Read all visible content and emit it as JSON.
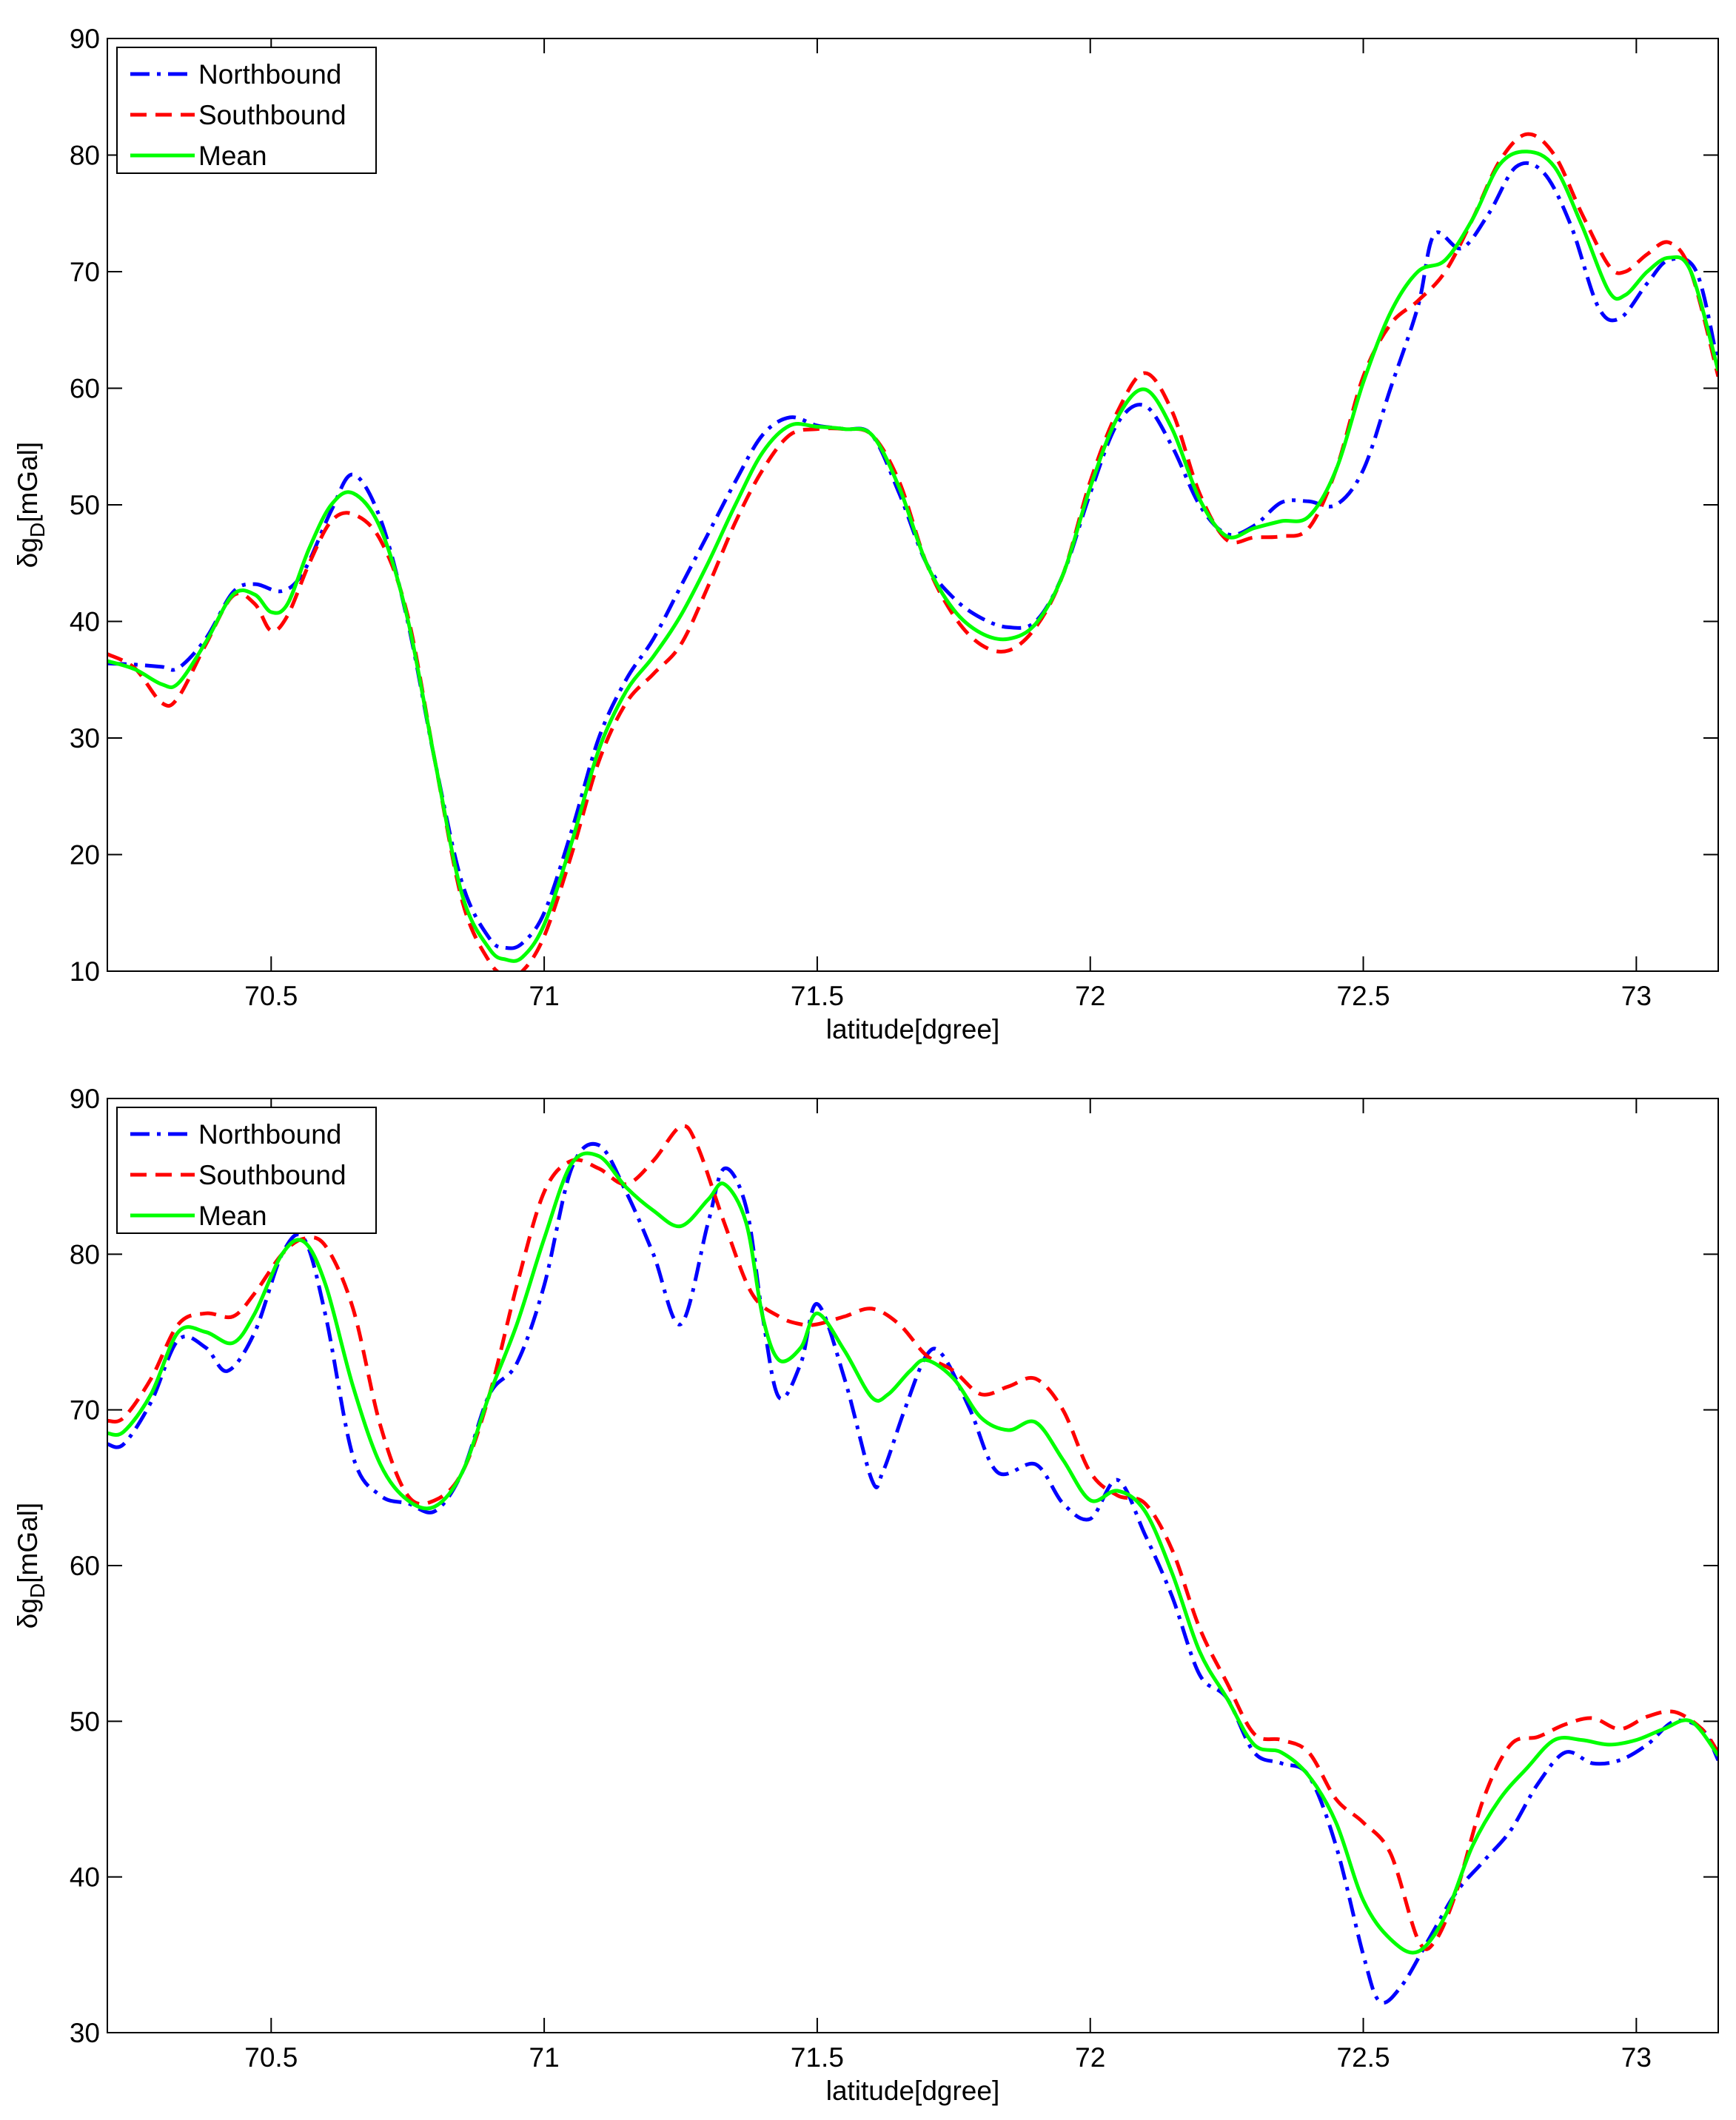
{
  "chart_data": [
    {
      "type": "line",
      "xlabel": "latitude[dgree]",
      "ylabel": "δg_D[mGal]",
      "ylabel_main": "δg",
      "ylabel_sub": "D",
      "ylabel_unit": "[mGal]",
      "xlim": [
        70.2,
        73.15
      ],
      "ylim": [
        10,
        90
      ],
      "xticks": [
        70.5,
        71,
        71.5,
        72,
        72.5,
        73
      ],
      "xtick_labels": [
        "70.5",
        "71",
        "71.5",
        "72",
        "72.5",
        "73"
      ],
      "yticks": [
        10,
        20,
        30,
        40,
        50,
        60,
        70,
        80,
        90
      ],
      "ytick_labels": [
        "10",
        "20",
        "30",
        "40",
        "50",
        "60",
        "70",
        "80",
        "90"
      ],
      "grid": false,
      "legend": "top-left",
      "series": [
        {
          "name": "Northbound",
          "color": "#0000ff",
          "style": "dashdot",
          "x": [
            70.2,
            70.25,
            70.3,
            70.33,
            70.38,
            70.43,
            70.47,
            70.52,
            70.56,
            70.61,
            70.65,
            70.7,
            70.75,
            70.8,
            70.85,
            70.9,
            70.93,
            70.96,
            71.0,
            71.05,
            71.1,
            71.15,
            71.2,
            71.25,
            71.3,
            71.35,
            71.4,
            71.45,
            71.5,
            71.55,
            71.6,
            71.65,
            71.7,
            71.75,
            71.8,
            71.85,
            71.9,
            71.95,
            72.0,
            72.05,
            72.1,
            72.15,
            72.2,
            72.25,
            72.3,
            72.35,
            72.4,
            72.45,
            72.5,
            72.55,
            72.6,
            72.63,
            72.68,
            72.73,
            72.78,
            72.83,
            72.88,
            72.93,
            72.97,
            73.02,
            73.06,
            73.11,
            73.15
          ],
          "values": [
            36.4,
            36.3,
            36.1,
            36.0,
            38.5,
            42.5,
            43.2,
            42.6,
            44.3,
            49.5,
            52.6,
            48.8,
            40.0,
            28.0,
            17.5,
            12.8,
            12.0,
            12.4,
            15.0,
            22.0,
            30.0,
            35.0,
            38.5,
            43.0,
            47.5,
            52.0,
            56.0,
            57.5,
            56.8,
            56.5,
            56.0,
            51.0,
            45.0,
            42.0,
            40.3,
            39.5,
            40.0,
            44.0,
            51.0,
            57.0,
            58.5,
            55.0,
            50.0,
            47.5,
            48.2,
            50.2,
            50.3,
            50.0,
            53.0,
            60.0,
            67.0,
            73.2,
            72.0,
            75.0,
            79.0,
            78.5,
            74.0,
            67.0,
            66.0,
            69.0,
            71.0,
            70.0,
            62.0
          ]
        },
        {
          "name": "Southbound",
          "color": "#ff0000",
          "style": "dashed",
          "x": [
            70.2,
            70.25,
            70.3,
            70.33,
            70.38,
            70.43,
            70.47,
            70.5,
            70.53,
            70.57,
            70.61,
            70.65,
            70.7,
            70.75,
            70.8,
            70.85,
            70.9,
            70.93,
            70.96,
            71.0,
            71.05,
            71.1,
            71.15,
            71.2,
            71.25,
            71.3,
            71.35,
            71.4,
            71.45,
            71.5,
            71.55,
            71.6,
            71.65,
            71.7,
            71.75,
            71.8,
            71.85,
            71.9,
            71.95,
            72.0,
            72.05,
            72.1,
            72.15,
            72.2,
            72.25,
            72.3,
            72.35,
            72.4,
            72.45,
            72.5,
            72.55,
            72.6,
            72.65,
            72.7,
            72.75,
            72.8,
            72.85,
            72.9,
            72.95,
            72.98,
            73.02,
            73.06,
            73.1,
            73.15
          ],
          "values": [
            37.2,
            36.0,
            33.0,
            33.5,
            38.0,
            42.2,
            41.5,
            39.2,
            40.5,
            45.0,
            48.6,
            49.2,
            47.0,
            40.5,
            28.0,
            16.0,
            10.8,
            9.7,
            10.0,
            13.0,
            20.0,
            28.0,
            33.0,
            35.5,
            38.0,
            43.0,
            48.5,
            53.0,
            56.0,
            56.5,
            56.5,
            56.0,
            52.0,
            45.0,
            40.5,
            38.0,
            37.5,
            39.5,
            44.0,
            52.0,
            58.0,
            61.3,
            58.0,
            51.0,
            47.0,
            47.2,
            47.3,
            48.0,
            53.0,
            61.0,
            65.5,
            67.5,
            70.0,
            74.5,
            79.5,
            81.8,
            80.0,
            75.0,
            70.5,
            70.0,
            71.5,
            72.5,
            70.0,
            61.0
          ]
        },
        {
          "name": "Mean",
          "color": "#00ff00",
          "style": "solid",
          "x": [
            70.2,
            70.25,
            70.3,
            70.33,
            70.38,
            70.43,
            70.47,
            70.5,
            70.53,
            70.57,
            70.61,
            70.65,
            70.7,
            70.75,
            70.8,
            70.85,
            70.9,
            70.93,
            70.96,
            71.0,
            71.05,
            71.1,
            71.15,
            71.2,
            71.25,
            71.3,
            71.35,
            71.4,
            71.45,
            71.5,
            71.55,
            71.6,
            71.65,
            71.7,
            71.75,
            71.8,
            71.85,
            71.9,
            71.95,
            72.0,
            72.05,
            72.1,
            72.15,
            72.2,
            72.25,
            72.3,
            72.35,
            72.4,
            72.45,
            72.5,
            72.55,
            72.6,
            72.65,
            72.7,
            72.75,
            72.8,
            72.85,
            72.9,
            72.95,
            72.98,
            73.02,
            73.06,
            73.1,
            73.15
          ],
          "values": [
            36.6,
            35.9,
            34.6,
            34.7,
            38.2,
            42.3,
            42.3,
            40.8,
            41.5,
            46.3,
            50.0,
            51.0,
            48.0,
            40.2,
            28.0,
            16.5,
            11.9,
            11.0,
            11.2,
            14.0,
            21.0,
            29.0,
            34.0,
            37.0,
            40.5,
            45.0,
            50.0,
            54.5,
            56.8,
            56.7,
            56.5,
            56.0,
            51.5,
            45.0,
            41.0,
            39.0,
            38.5,
            39.8,
            44.0,
            51.5,
            57.5,
            59.9,
            56.5,
            50.5,
            47.3,
            48.0,
            48.6,
            49.0,
            53.0,
            60.5,
            66.5,
            70.0,
            71.0,
            74.5,
            79.2,
            80.3,
            79.0,
            74.0,
            68.3,
            68.0,
            70.0,
            71.2,
            70.0,
            61.5
          ]
        }
      ]
    },
    {
      "type": "line",
      "xlabel": "latitude[dgree]",
      "ylabel": "δg_D[mGal]",
      "ylabel_main": "δg",
      "ylabel_sub": "D",
      "ylabel_unit": "[mGal]",
      "xlim": [
        70.2,
        73.15
      ],
      "ylim": [
        30,
        90
      ],
      "xticks": [
        70.5,
        71,
        71.5,
        72,
        72.5,
        73
      ],
      "xtick_labels": [
        "70.5",
        "71",
        "71.5",
        "72",
        "72.5",
        "73"
      ],
      "yticks": [
        30,
        40,
        50,
        60,
        70,
        80,
        90
      ],
      "ytick_labels": [
        "30",
        "40",
        "50",
        "60",
        "70",
        "80",
        "90"
      ],
      "grid": false,
      "legend": "top-left",
      "series": [
        {
          "name": "Northbound",
          "color": "#0000ff",
          "style": "dashdot",
          "x": [
            70.2,
            70.23,
            70.28,
            70.33,
            70.38,
            70.42,
            70.47,
            70.52,
            70.56,
            70.6,
            70.65,
            70.7,
            70.75,
            70.8,
            70.85,
            70.9,
            70.95,
            71.0,
            71.05,
            71.1,
            71.15,
            71.2,
            71.25,
            71.3,
            71.33,
            71.37,
            71.4,
            71.43,
            71.47,
            71.5,
            71.55,
            71.6,
            71.62,
            71.66,
            71.7,
            71.73,
            71.78,
            71.83,
            71.9,
            71.95,
            72.0,
            72.05,
            72.1,
            72.15,
            72.2,
            72.25,
            72.3,
            72.35,
            72.4,
            72.45,
            72.5,
            72.53,
            72.57,
            72.62,
            72.67,
            72.72,
            72.77,
            72.82,
            72.87,
            72.92,
            72.97,
            73.02,
            73.07,
            73.12,
            73.15
          ],
          "values": [
            67.8,
            67.8,
            70.5,
            74.5,
            74.0,
            72.5,
            75.0,
            80.0,
            81.0,
            76.0,
            67.0,
            64.5,
            64.0,
            63.5,
            66.0,
            71.0,
            73.0,
            78.0,
            85.5,
            87.0,
            84.0,
            80.0,
            75.5,
            82.0,
            85.5,
            83.0,
            76.0,
            70.8,
            73.0,
            76.8,
            72.0,
            65.5,
            66.0,
            70.0,
            73.5,
            73.5,
            70.0,
            66.0,
            66.5,
            64.0,
            63.0,
            65.5,
            62.0,
            58.0,
            53.0,
            51.5,
            48.0,
            47.3,
            46.5,
            42.0,
            35.0,
            32.0,
            33.0,
            36.0,
            39.0,
            41.0,
            43.0,
            46.0,
            48.0,
            47.3,
            47.5,
            48.5,
            50.0,
            49.5,
            47.5
          ]
        },
        {
          "name": "Southbound",
          "color": "#ff0000",
          "style": "dashed",
          "x": [
            70.2,
            70.23,
            70.28,
            70.33,
            70.38,
            70.43,
            70.47,
            70.52,
            70.56,
            70.6,
            70.65,
            70.7,
            70.75,
            70.8,
            70.85,
            70.9,
            70.95,
            71.0,
            71.05,
            71.1,
            71.15,
            71.2,
            71.25,
            71.28,
            71.33,
            71.38,
            71.43,
            71.47,
            71.5,
            71.55,
            71.6,
            71.65,
            71.7,
            71.75,
            71.8,
            71.85,
            71.9,
            71.95,
            72.0,
            72.05,
            72.1,
            72.15,
            72.2,
            72.25,
            72.3,
            72.35,
            72.4,
            72.45,
            72.5,
            72.55,
            72.6,
            72.63,
            72.67,
            72.72,
            72.77,
            72.82,
            72.87,
            72.92,
            72.97,
            73.02,
            73.07,
            73.12,
            73.15
          ],
          "values": [
            69.3,
            69.5,
            72.0,
            75.5,
            76.2,
            76.0,
            77.5,
            80.0,
            81.0,
            80.5,
            76.5,
            69.0,
            64.5,
            64.2,
            66.0,
            71.0,
            78.0,
            84.0,
            86.0,
            85.5,
            84.5,
            86.0,
            88.2,
            87.0,
            82.0,
            77.5,
            76.0,
            75.5,
            75.5,
            76.0,
            76.5,
            75.5,
            73.5,
            72.5,
            71.0,
            71.5,
            72.0,
            70.0,
            66.0,
            64.5,
            64.0,
            61.0,
            56.0,
            52.5,
            49.2,
            48.8,
            48.0,
            45.0,
            43.5,
            41.5,
            36.0,
            35.8,
            39.0,
            45.0,
            48.5,
            49.0,
            49.8,
            50.2,
            49.5,
            50.3,
            50.6,
            49.5,
            48.0
          ]
        },
        {
          "name": "Mean",
          "color": "#00ff00",
          "style": "solid",
          "x": [
            70.2,
            70.23,
            70.28,
            70.33,
            70.38,
            70.43,
            70.47,
            70.52,
            70.56,
            70.6,
            70.65,
            70.7,
            70.75,
            70.8,
            70.85,
            70.9,
            70.95,
            71.0,
            71.05,
            71.1,
            71.15,
            71.2,
            71.25,
            71.3,
            71.33,
            71.37,
            71.4,
            71.43,
            71.47,
            71.5,
            71.55,
            71.6,
            71.63,
            71.67,
            71.7,
            71.75,
            71.8,
            71.85,
            71.9,
            71.95,
            72.0,
            72.05,
            72.1,
            72.15,
            72.2,
            72.25,
            72.3,
            72.35,
            72.4,
            72.45,
            72.5,
            72.55,
            72.6,
            72.65,
            72.7,
            72.75,
            72.8,
            72.85,
            72.9,
            72.95,
            73.0,
            73.05,
            73.1,
            73.15
          ],
          "values": [
            68.5,
            68.6,
            71.0,
            75.0,
            75.0,
            74.3,
            76.2,
            80.0,
            80.8,
            78.0,
            71.5,
            66.5,
            64.2,
            63.8,
            66.0,
            71.0,
            75.5,
            81.0,
            85.8,
            86.3,
            84.3,
            82.8,
            81.8,
            83.5,
            84.5,
            82.0,
            76.0,
            73.2,
            74.0,
            76.2,
            73.8,
            70.8,
            71.0,
            72.5,
            73.2,
            72.0,
            69.5,
            68.7,
            69.2,
            66.8,
            64.2,
            64.8,
            63.5,
            59.5,
            54.5,
            51.5,
            48.5,
            48.0,
            46.5,
            43.5,
            38.5,
            36.0,
            35.2,
            37.5,
            42.0,
            45.0,
            47.0,
            48.8,
            48.8,
            48.5,
            48.8,
            49.5,
            50.0,
            47.8
          ]
        }
      ]
    }
  ]
}
